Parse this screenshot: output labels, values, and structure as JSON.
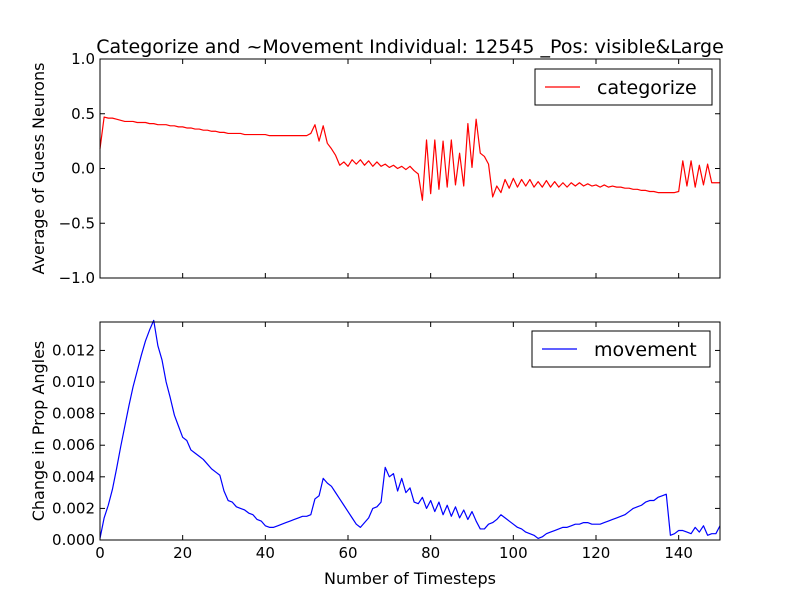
{
  "figure": {
    "title": "Categorize and ~Movement Individual: 12545 _Pos: visible&Large"
  },
  "chart_data": [
    {
      "type": "line",
      "ylabel": "Average of Guess Neurons",
      "xlabel": "",
      "xlim": [
        0,
        150
      ],
      "ylim": [
        -1.0,
        1.0
      ],
      "xticks": [
        0,
        20,
        40,
        60,
        80,
        100,
        120,
        140
      ],
      "xtick_labels_shown": false,
      "yticks": [
        -1.0,
        -0.5,
        0.0,
        0.5,
        1.0
      ],
      "ytick_labels": [
        "−1.0",
        "−0.5",
        "0.0",
        "0.5",
        "1.0"
      ],
      "grid": false,
      "legend": "top-right",
      "series": [
        {
          "name": "categorize",
          "color": "#ff0000",
          "x": [
            0,
            1,
            2,
            3,
            4,
            5,
            6,
            7,
            8,
            9,
            10,
            11,
            12,
            13,
            14,
            15,
            16,
            17,
            18,
            19,
            20,
            21,
            22,
            23,
            24,
            25,
            26,
            27,
            28,
            29,
            30,
            31,
            32,
            33,
            34,
            35,
            36,
            37,
            38,
            39,
            40,
            41,
            42,
            43,
            44,
            45,
            46,
            47,
            48,
            49,
            50,
            51,
            52,
            53,
            54,
            55,
            56,
            57,
            58,
            59,
            60,
            61,
            62,
            63,
            64,
            65,
            66,
            67,
            68,
            69,
            70,
            71,
            72,
            73,
            74,
            75,
            76,
            77,
            78,
            79,
            80,
            81,
            82,
            83,
            84,
            85,
            86,
            87,
            88,
            89,
            90,
            91,
            92,
            93,
            94,
            95,
            96,
            97,
            98,
            99,
            100,
            101,
            102,
            103,
            104,
            105,
            106,
            107,
            108,
            109,
            110,
            111,
            112,
            113,
            114,
            115,
            116,
            117,
            118,
            119,
            120,
            121,
            122,
            123,
            124,
            125,
            126,
            127,
            128,
            129,
            130,
            131,
            132,
            133,
            134,
            135,
            136,
            137,
            138,
            139,
            140,
            141,
            142,
            143,
            144,
            145,
            146,
            147,
            148,
            149,
            150
          ],
          "y": [
            0.18,
            0.47,
            0.46,
            0.46,
            0.45,
            0.44,
            0.43,
            0.43,
            0.43,
            0.42,
            0.42,
            0.42,
            0.41,
            0.41,
            0.4,
            0.4,
            0.4,
            0.39,
            0.39,
            0.38,
            0.38,
            0.37,
            0.37,
            0.36,
            0.36,
            0.35,
            0.35,
            0.34,
            0.34,
            0.33,
            0.33,
            0.32,
            0.32,
            0.32,
            0.32,
            0.31,
            0.31,
            0.31,
            0.31,
            0.31,
            0.31,
            0.3,
            0.3,
            0.3,
            0.3,
            0.3,
            0.3,
            0.3,
            0.3,
            0.3,
            0.3,
            0.32,
            0.4,
            0.25,
            0.39,
            0.23,
            0.18,
            0.12,
            0.03,
            0.06,
            0.02,
            0.08,
            0.04,
            0.08,
            0.03,
            0.07,
            0.02,
            0.06,
            0.02,
            0.04,
            0.01,
            0.03,
            0.0,
            0.02,
            -0.01,
            0.02,
            -0.02,
            -0.05,
            -0.29,
            0.26,
            -0.23,
            0.26,
            -0.19,
            0.25,
            -0.17,
            0.26,
            -0.15,
            0.14,
            -0.16,
            0.41,
            0.01,
            0.45,
            0.14,
            0.11,
            0.04,
            -0.26,
            -0.16,
            -0.22,
            -0.1,
            -0.18,
            -0.09,
            -0.17,
            -0.1,
            -0.16,
            -0.1,
            -0.17,
            -0.12,
            -0.17,
            -0.11,
            -0.17,
            -0.12,
            -0.17,
            -0.13,
            -0.17,
            -0.13,
            -0.16,
            -0.13,
            -0.16,
            -0.14,
            -0.16,
            -0.15,
            -0.17,
            -0.15,
            -0.17,
            -0.16,
            -0.17,
            -0.17,
            -0.18,
            -0.18,
            -0.19,
            -0.19,
            -0.2,
            -0.2,
            -0.21,
            -0.21,
            -0.22,
            -0.22,
            -0.22,
            -0.22,
            -0.22,
            -0.21,
            0.07,
            -0.16,
            0.07,
            -0.17,
            0.03,
            -0.15,
            0.04,
            -0.13,
            -0.13,
            -0.13
          ]
        }
      ]
    },
    {
      "type": "line",
      "ylabel": "Change in Prop Angles",
      "xlabel": "Number of Timesteps",
      "xlim": [
        0,
        150
      ],
      "ylim": [
        0.0,
        0.0138
      ],
      "xticks": [
        0,
        20,
        40,
        60,
        80,
        100,
        120,
        140
      ],
      "xtick_labels": [
        "0",
        "20",
        "40",
        "60",
        "80",
        "100",
        "120",
        "140"
      ],
      "yticks": [
        0.0,
        0.002,
        0.004,
        0.006,
        0.008,
        0.01,
        0.012
      ],
      "ytick_labels": [
        "0.000",
        "0.002",
        "0.004",
        "0.006",
        "0.008",
        "0.010",
        "0.012"
      ],
      "grid": false,
      "legend": "top-right",
      "series": [
        {
          "name": "movement",
          "color": "#0000ff",
          "x": [
            0,
            1,
            2,
            3,
            4,
            5,
            6,
            7,
            8,
            9,
            10,
            11,
            12,
            13,
            14,
            15,
            16,
            17,
            18,
            19,
            20,
            21,
            22,
            23,
            24,
            25,
            26,
            27,
            28,
            29,
            30,
            31,
            32,
            33,
            34,
            35,
            36,
            37,
            38,
            39,
            40,
            41,
            42,
            43,
            44,
            45,
            46,
            47,
            48,
            49,
            50,
            51,
            52,
            53,
            54,
            55,
            56,
            57,
            58,
            59,
            60,
            61,
            62,
            63,
            64,
            65,
            66,
            67,
            68,
            69,
            70,
            71,
            72,
            73,
            74,
            75,
            76,
            77,
            78,
            79,
            80,
            81,
            82,
            83,
            84,
            85,
            86,
            87,
            88,
            89,
            90,
            91,
            92,
            93,
            94,
            95,
            96,
            97,
            98,
            99,
            100,
            101,
            102,
            103,
            104,
            105,
            106,
            107,
            108,
            109,
            110,
            111,
            112,
            113,
            114,
            115,
            116,
            117,
            118,
            119,
            120,
            121,
            122,
            123,
            124,
            125,
            126,
            127,
            128,
            129,
            130,
            131,
            132,
            133,
            134,
            135,
            136,
            137,
            138,
            139,
            140,
            141,
            142,
            143,
            144,
            145,
            146,
            147,
            148,
            149,
            150
          ],
          "y": [
            0.0001,
            0.0014,
            0.0022,
            0.0032,
            0.0045,
            0.0059,
            0.0072,
            0.0085,
            0.0097,
            0.0107,
            0.0117,
            0.0126,
            0.0133,
            0.0139,
            0.0123,
            0.0114,
            0.01,
            0.009,
            0.0079,
            0.0072,
            0.0065,
            0.0063,
            0.0057,
            0.0055,
            0.0053,
            0.0051,
            0.0048,
            0.0045,
            0.0043,
            0.0041,
            0.0031,
            0.0025,
            0.0024,
            0.0021,
            0.002,
            0.0019,
            0.0017,
            0.0016,
            0.0013,
            0.0012,
            0.0009,
            0.0008,
            0.0008,
            0.0009,
            0.001,
            0.0011,
            0.0012,
            0.0013,
            0.0014,
            0.0015,
            0.0015,
            0.0016,
            0.0026,
            0.0028,
            0.0039,
            0.0036,
            0.0034,
            0.003,
            0.0026,
            0.0022,
            0.0018,
            0.0014,
            0.001,
            0.0008,
            0.0011,
            0.0014,
            0.002,
            0.0021,
            0.0024,
            0.0046,
            0.004,
            0.0042,
            0.0031,
            0.0039,
            0.003,
            0.0033,
            0.0024,
            0.0023,
            0.0027,
            0.002,
            0.0025,
            0.0018,
            0.0024,
            0.0016,
            0.0022,
            0.0015,
            0.0021,
            0.0014,
            0.0019,
            0.0013,
            0.0018,
            0.0012,
            0.0007,
            0.0007,
            0.001,
            0.0011,
            0.0013,
            0.0016,
            0.0014,
            0.0012,
            0.001,
            0.0008,
            0.0007,
            0.0005,
            0.0004,
            0.0003,
            0.0001,
            0.0002,
            0.0004,
            0.0005,
            0.0006,
            0.0007,
            0.0008,
            0.0008,
            0.0009,
            0.001,
            0.001,
            0.0011,
            0.0011,
            0.001,
            0.001,
            0.001,
            0.0011,
            0.0012,
            0.0013,
            0.0014,
            0.0015,
            0.0016,
            0.0018,
            0.002,
            0.0021,
            0.0022,
            0.0024,
            0.0025,
            0.0025,
            0.0027,
            0.0028,
            0.0029,
            0.0003,
            0.0004,
            0.0006,
            0.0006,
            0.0005,
            0.0004,
            0.0008,
            0.0005,
            0.0009,
            0.0003,
            0.0004,
            0.0004,
            0.0009
          ]
        }
      ]
    }
  ]
}
